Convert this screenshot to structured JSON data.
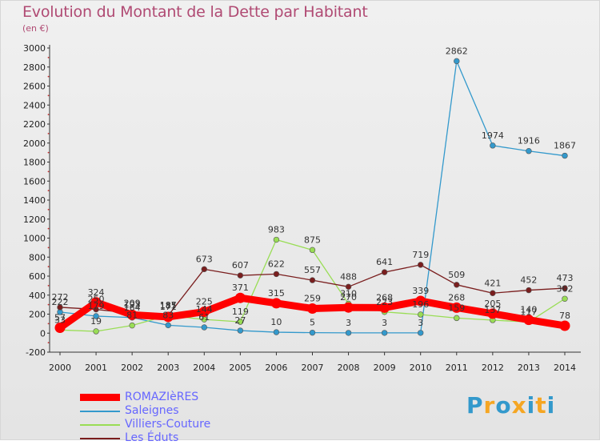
{
  "title": "Evolution du Montant de la Dette par Habitant",
  "subtitle": "(en €)",
  "logo": {
    "text": "Proxiti",
    "letters": [
      "P",
      "r",
      "o",
      "x",
      "i",
      "t",
      "i"
    ],
    "colors": [
      "#3399cc",
      "#f5a623",
      "#3399cc",
      "#f5a623",
      "#3399cc",
      "#f5a623",
      "#3399cc"
    ]
  },
  "chart_data": {
    "type": "line",
    "title": "Evolution du Montant de la Dette par Habitant",
    "subtitle": "(en €)",
    "xlabel": "",
    "ylabel": "",
    "x": [
      "2000",
      "2001",
      "2002",
      "2003",
      "2004",
      "2005",
      "2006",
      "2007",
      "2008",
      "2009",
      "2010",
      "2011",
      "2012",
      "2013",
      "2014"
    ],
    "ylim": [
      -200,
      3000
    ],
    "yticks": [
      -200,
      0,
      200,
      400,
      600,
      800,
      1000,
      1200,
      1400,
      1600,
      1800,
      2000,
      2200,
      2400,
      2600,
      2800,
      3000
    ],
    "grid": false,
    "legend_position": "bottom-left",
    "series": [
      {
        "name": "ROMAZIèRES",
        "color": "#ff0000",
        "thick": true,
        "values": [
          57,
          324,
          193,
          171,
          225,
          371,
          315,
          259,
          270,
          268,
          339,
          268,
          205,
          140,
          78
        ],
        "labels": [
          "57",
          "324",
          "193",
          "171",
          "225",
          "371",
          "315",
          "259",
          "270",
          "268",
          "339",
          "268",
          "205",
          "140",
          "78"
        ]
      },
      {
        "name": "Saleignes",
        "color": "#3399cc",
        "thick": false,
        "values": [
          222,
          179,
          164,
          83,
          61,
          27,
          10,
          5,
          3,
          3,
          3,
          2862,
          1974,
          1916,
          1867
        ],
        "labels": [
          "222",
          "179",
          "164",
          "83",
          "61",
          "27",
          "10",
          "5",
          "3",
          "3",
          "3",
          "2862",
          "1974",
          "1916",
          "1867"
        ]
      },
      {
        "name": "Villiers-Couture",
        "color": "#99dd55",
        "thick": false,
        "values": [
          33,
          19,
          81,
          187,
          144,
          119,
          983,
          875,
          310,
          223,
          196,
          159,
          137,
          117,
          362
        ],
        "labels": [
          "33",
          "19",
          "81",
          "187",
          "144",
          "119",
          "983",
          "875",
          "310",
          "223",
          "196",
          "159",
          "137",
          "117",
          "362"
        ]
      },
      {
        "name": "Les Éduts",
        "color": "#7a1e1e",
        "thick": false,
        "values": [
          272,
          250,
          209,
          185,
          673,
          607,
          622,
          557,
          488,
          641,
          719,
          509,
          421,
          452,
          473
        ],
        "labels": [
          "272",
          "250",
          "209",
          "185",
          "673",
          "607",
          "622",
          "557",
          "488",
          "641",
          "719",
          "509",
          "421",
          "452",
          "473"
        ]
      }
    ]
  }
}
